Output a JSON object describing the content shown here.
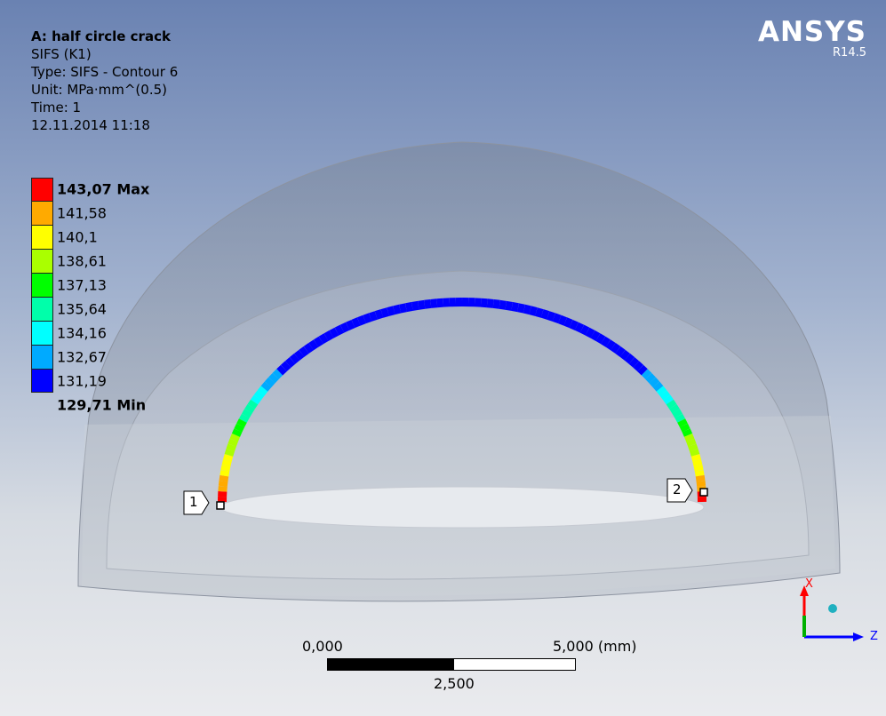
{
  "info": {
    "title": "A: half circle crack",
    "result": "SIFS (K1)",
    "type": "Type: SIFS - Contour 6",
    "unit": "Unit: MPa·mm^(0.5)",
    "time": "Time: 1",
    "date": "12.11.2014 11:18"
  },
  "logo": {
    "brand": "ANSYS",
    "version": "R14.5"
  },
  "legend": {
    "max_label": "143,07 Max",
    "min_label": "129,71 Min",
    "ticks": [
      "141,58",
      "140,1",
      "138,61",
      "137,13",
      "135,64",
      "134,16",
      "132,67",
      "131,19"
    ],
    "colors": [
      "#ff0000",
      "#ffaa00",
      "#ffff00",
      "#aaff00",
      "#00ff00",
      "#00ffaa",
      "#00ffff",
      "#00aaff",
      "#0000ff"
    ]
  },
  "probes": [
    {
      "label": "1"
    },
    {
      "label": "2"
    }
  ],
  "scale": {
    "start": "0,000",
    "mid": "2,500",
    "end": "5,000 (mm)"
  },
  "triad": {
    "x_label": "X",
    "z_label": "Z",
    "x_color": "#ff0000",
    "y_color": "#00b000",
    "z_color": "#0000ff"
  }
}
